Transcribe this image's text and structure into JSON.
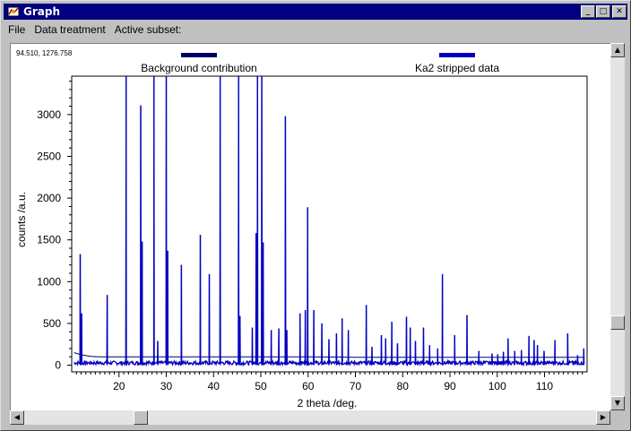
{
  "window": {
    "title": "Graph",
    "minimize": "_",
    "maximize": "□",
    "close": "✕"
  },
  "menu": [
    "File",
    "Data treatment",
    "Active subset:"
  ],
  "cursor_readout": "94.510, 1276.758",
  "legend": [
    {
      "label": "Background contribution",
      "color": "#000066"
    },
    {
      "label": "Ka2 stripped data",
      "color": "#0000c0"
    }
  ],
  "chart_data": {
    "type": "line",
    "xlabel": "2 theta /deg.",
    "ylabel": "counts /a.u.",
    "xlim": [
      10,
      119
    ],
    "ylim": [
      -80,
      3460
    ],
    "x_ticks": [
      20,
      30,
      40,
      50,
      60,
      70,
      80,
      90,
      100,
      110
    ],
    "y_ticks": [
      0,
      500,
      1000,
      1500,
      2000,
      2500,
      3000
    ],
    "series": [
      {
        "name": "Background contribution",
        "color": "#000066",
        "x": [
          10.5,
          12,
          14,
          16,
          20,
          30,
          40,
          50,
          60,
          70,
          80,
          90,
          100,
          110,
          118.5
        ],
        "y": [
          150,
          125,
          105,
          100,
          100,
          100,
          100,
          100,
          100,
          95,
          95,
          95,
          95,
          95,
          95
        ]
      },
      {
        "name": "Ka2 stripped data",
        "color": "#0000c0",
        "peaks": [
          [
            11.8,
            1330
          ],
          [
            12.1,
            620
          ],
          [
            17.5,
            840
          ],
          [
            21.5,
            3460
          ],
          [
            24.6,
            3110
          ],
          [
            24.9,
            1480
          ],
          [
            27.4,
            3460
          ],
          [
            28.2,
            290
          ],
          [
            30.0,
            3460
          ],
          [
            30.3,
            1370
          ],
          [
            33.2,
            1200
          ],
          [
            37.2,
            1560
          ],
          [
            39.1,
            1090
          ],
          [
            41.4,
            3460
          ],
          [
            45.3,
            3460
          ],
          [
            45.6,
            590
          ],
          [
            48.2,
            450
          ],
          [
            49.0,
            1580
          ],
          [
            49.3,
            3460
          ],
          [
            50.2,
            3460
          ],
          [
            50.5,
            1470
          ],
          [
            52.2,
            420
          ],
          [
            53.8,
            440
          ],
          [
            55.2,
            2980
          ],
          [
            55.5,
            420
          ],
          [
            58.3,
            620
          ],
          [
            59.4,
            660
          ],
          [
            59.9,
            1890
          ],
          [
            61.2,
            660
          ],
          [
            62.9,
            500
          ],
          [
            64.4,
            310
          ],
          [
            66.0,
            380
          ],
          [
            67.2,
            560
          ],
          [
            68.5,
            420
          ],
          [
            72.3,
            720
          ],
          [
            73.5,
            220
          ],
          [
            75.5,
            360
          ],
          [
            76.4,
            320
          ],
          [
            77.7,
            520
          ],
          [
            78.9,
            260
          ],
          [
            80.8,
            580
          ],
          [
            81.6,
            450
          ],
          [
            82.7,
            290
          ],
          [
            84.4,
            450
          ],
          [
            85.7,
            240
          ],
          [
            87.4,
            200
          ],
          [
            88.4,
            1090
          ],
          [
            91.0,
            360
          ],
          [
            93.6,
            600
          ],
          [
            96.1,
            170
          ],
          [
            98.9,
            140
          ],
          [
            100.1,
            130
          ],
          [
            101.3,
            160
          ],
          [
            102.3,
            320
          ],
          [
            103.7,
            170
          ],
          [
            105.1,
            180
          ],
          [
            106.7,
            350
          ],
          [
            107.8,
            300
          ],
          [
            108.5,
            240
          ],
          [
            109.9,
            170
          ],
          [
            112.2,
            300
          ],
          [
            114.9,
            380
          ],
          [
            117.0,
            120
          ],
          [
            118.3,
            200
          ]
        ]
      }
    ]
  }
}
